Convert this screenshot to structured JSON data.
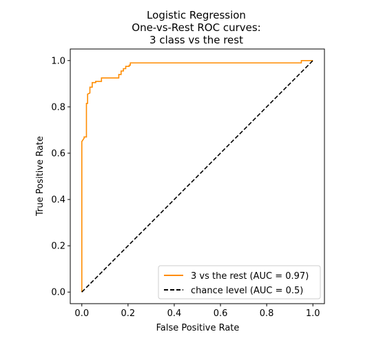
{
  "chart_data": {
    "type": "line",
    "title_lines": [
      "Logistic Regression",
      "One-vs-Rest ROC curves:",
      "3 class vs the rest"
    ],
    "xlabel": "False Positive Rate",
    "ylabel": "True Positive Rate",
    "xlim": [
      -0.05,
      1.05
    ],
    "ylim": [
      -0.05,
      1.05
    ],
    "xticks": [
      0.0,
      0.2,
      0.4,
      0.6,
      0.8,
      1.0
    ],
    "xtick_labels": [
      "0.0",
      "0.2",
      "0.4",
      "0.6",
      "0.8",
      "1.0"
    ],
    "yticks": [
      0.0,
      0.2,
      0.4,
      0.6,
      0.8,
      1.0
    ],
    "ytick_labels": [
      "0.0",
      "0.2",
      "0.4",
      "0.6",
      "0.8",
      "1.0"
    ],
    "grid": false,
    "legend_placement": "lower-right",
    "series": [
      {
        "name": "3 vs the rest (AUC = 0.97)",
        "color": "#ff8c00",
        "dash": "solid",
        "x": [
          0.0,
          0.0,
          0.0,
          0.01,
          0.01,
          0.02,
          0.02,
          0.025,
          0.025,
          0.035,
          0.035,
          0.045,
          0.045,
          0.06,
          0.06,
          0.085,
          0.085,
          0.16,
          0.16,
          0.17,
          0.17,
          0.18,
          0.18,
          0.19,
          0.19,
          0.205,
          0.205,
          0.21,
          0.21,
          0.95,
          0.95,
          1.0
        ],
        "y": [
          0.0,
          0.56,
          0.65,
          0.665,
          0.67,
          0.67,
          0.815,
          0.815,
          0.855,
          0.86,
          0.885,
          0.885,
          0.905,
          0.905,
          0.91,
          0.91,
          0.925,
          0.925,
          0.94,
          0.94,
          0.955,
          0.955,
          0.965,
          0.965,
          0.975,
          0.975,
          0.98,
          0.98,
          0.99,
          0.99,
          1.0,
          1.0
        ]
      },
      {
        "name": "chance level (AUC = 0.5)",
        "color": "#000000",
        "dash": "dashed",
        "x": [
          0.0,
          1.0
        ],
        "y": [
          0.0,
          1.0
        ]
      }
    ]
  }
}
